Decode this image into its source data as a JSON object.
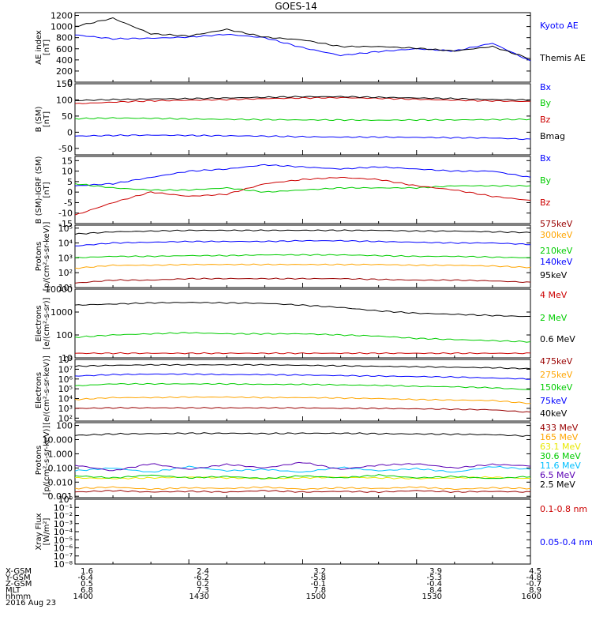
{
  "title": "GOES-14",
  "colors": {
    "black": "#000000",
    "blue": "#0000ff",
    "red": "#cc0000",
    "green": "#00cc00",
    "orange": "#ffa500",
    "darkred": "#990000",
    "yellow": "#e8e800",
    "cyan": "#00bfff",
    "purple": "#5a00b4"
  },
  "chart_data": [
    {
      "type": "line",
      "ylabel": "AE index\n[nT]",
      "yticks": [
        "0",
        "200",
        "400",
        "600",
        "800",
        "1000",
        "1200"
      ],
      "ylim": [
        0,
        1250
      ],
      "log": false,
      "x": [
        "1400",
        "1410",
        "1420",
        "1430",
        "1440",
        "1450",
        "1500",
        "1510",
        "1520",
        "1530",
        "1540",
        "1550",
        "1600"
      ],
      "series": [
        {
          "name": "Kyoto AE",
          "color": "#0000ff",
          "values": [
            850,
            780,
            790,
            810,
            860,
            800,
            620,
            480,
            550,
            600,
            560,
            700,
            380
          ]
        },
        {
          "name": "Themis AE",
          "color": "#000000",
          "values": [
            1000,
            1150,
            870,
            830,
            950,
            810,
            760,
            640,
            640,
            610,
            560,
            640,
            420
          ]
        }
      ]
    },
    {
      "type": "line",
      "ylabel": "B (SM)\n[nT]",
      "yticks": [
        "-50",
        "0",
        "50",
        "100",
        "150"
      ],
      "ylim": [
        -70,
        150
      ],
      "log": false,
      "x": [
        "1400",
        "1410",
        "1420",
        "1430",
        "1440",
        "1450",
        "1500",
        "1510",
        "1520",
        "1530",
        "1540",
        "1550",
        "1600"
      ],
      "series": [
        {
          "name": "Bx",
          "color": "#0000ff",
          "values": [
            -12,
            -10,
            -9,
            -10,
            -11,
            -12,
            -14,
            -15,
            -15,
            -16,
            -17,
            -18,
            -22
          ]
        },
        {
          "name": "By",
          "color": "#00cc00",
          "values": [
            42,
            44,
            43,
            41,
            40,
            39,
            38,
            38,
            37,
            38,
            38,
            39,
            40
          ]
        },
        {
          "name": "Bz",
          "color": "#cc0000",
          "values": [
            88,
            93,
            97,
            99,
            101,
            104,
            106,
            107,
            105,
            102,
            99,
            97,
            95
          ]
        },
        {
          "name": "Bmag",
          "color": "#000000",
          "values": [
            98,
            101,
            103,
            104,
            106,
            108,
            110,
            110,
            108,
            106,
            104,
            101,
            100
          ]
        }
      ]
    },
    {
      "type": "line",
      "ylabel": "B (SM)-IGRF (SM)\n[nT]",
      "yticks": [
        "-15",
        "-10",
        "-5",
        "0",
        "5",
        "10",
        "15"
      ],
      "ylim": [
        -15,
        17
      ],
      "log": false,
      "x": [
        "1400",
        "1410",
        "1420",
        "1430",
        "1440",
        "1450",
        "1500",
        "1510",
        "1520",
        "1530",
        "1540",
        "1550",
        "1600"
      ],
      "series": [
        {
          "name": "Bx",
          "color": "#0000ff",
          "values": [
            3,
            4,
            7,
            10,
            11,
            13,
            12,
            11,
            12,
            11,
            10,
            10,
            7
          ]
        },
        {
          "name": "By",
          "color": "#00cc00",
          "values": [
            4,
            2,
            1,
            1,
            2,
            0,
            1,
            2,
            2,
            2,
            3,
            3,
            3
          ]
        },
        {
          "name": "Bz",
          "color": "#cc0000",
          "values": [
            -11,
            -5,
            0,
            -2,
            -1,
            4,
            6,
            7,
            6,
            3,
            1,
            -2,
            -4
          ]
        }
      ]
    },
    {
      "type": "line",
      "ylabel": "Protons\n[p/(cm²-s-sr-keV)]",
      "yticks": [
        "10¹",
        "10²",
        "10³",
        "10⁴",
        "10⁵"
      ],
      "ylim": [
        1,
        5.2
      ],
      "log": true,
      "x": [
        "1400",
        "1410",
        "1420",
        "1430",
        "1440",
        "1450",
        "1500",
        "1510",
        "1520",
        "1530",
        "1540",
        "1550",
        "1600"
      ],
      "series": [
        {
          "name": "575keV",
          "color": "#990000",
          "values": [
            1.3,
            1.5,
            1.5,
            1.6,
            1.6,
            1.6,
            1.6,
            1.6,
            1.55,
            1.5,
            1.5,
            1.45,
            1.35
          ]
        },
        {
          "name": "300keV",
          "color": "#ffa500",
          "values": [
            2.3,
            2.5,
            2.5,
            2.55,
            2.55,
            2.55,
            2.55,
            2.55,
            2.55,
            2.5,
            2.5,
            2.45,
            2.35
          ]
        },
        {
          "name": "210keV",
          "color": "#00cc00",
          "values": [
            3.0,
            3.1,
            3.1,
            3.15,
            3.15,
            3.2,
            3.2,
            3.2,
            3.15,
            3.1,
            3.1,
            3.05,
            3.0
          ]
        },
        {
          "name": "140keV",
          "color": "#0000ff",
          "values": [
            3.8,
            4.0,
            4.05,
            4.1,
            4.1,
            4.1,
            4.15,
            4.15,
            4.1,
            4.05,
            4.0,
            4.0,
            3.9
          ]
        },
        {
          "name": "95keV",
          "color": "#000000",
          "values": [
            4.6,
            4.75,
            4.8,
            4.85,
            4.85,
            4.85,
            4.85,
            4.85,
            4.85,
            4.8,
            4.8,
            4.75,
            4.7
          ]
        }
      ]
    },
    {
      "type": "line",
      "ylabel": "Electrons\n[e/(cm²-s-sr)]",
      "yticks": [
        "10",
        "100",
        "1000",
        "10000"
      ],
      "ylim": [
        1,
        4
      ],
      "log": true,
      "x": [
        "1400",
        "1410",
        "1420",
        "1430",
        "1440",
        "1450",
        "1500",
        "1510",
        "1520",
        "1530",
        "1540",
        "1550",
        "1600"
      ],
      "series": [
        {
          "name": "4 MeV",
          "color": "#cc0000",
          "values": [
            1.2,
            1.2,
            1.2,
            1.2,
            1.2,
            1.2,
            1.2,
            1.2,
            1.2,
            1.2,
            1.2,
            1.2,
            1.2
          ]
        },
        {
          "name": "2 MeV",
          "color": "#00cc00",
          "values": [
            1.9,
            2.0,
            2.05,
            2.1,
            2.05,
            2.05,
            2.05,
            2.0,
            1.95,
            1.85,
            1.8,
            1.75,
            1.7
          ]
        },
        {
          "name": "0.6 MeV",
          "color": "#000000",
          "values": [
            3.3,
            3.35,
            3.4,
            3.42,
            3.4,
            3.38,
            3.3,
            3.2,
            3.05,
            2.95,
            2.9,
            2.85,
            2.8
          ]
        }
      ]
    },
    {
      "type": "line",
      "ylabel": "Electrons\n[e/(cm²-s-sr-keV)]",
      "yticks": [
        "10²",
        "10³",
        "10⁴",
        "10⁵",
        "10⁶",
        "10⁷",
        "10⁸"
      ],
      "ylim": [
        1.7,
        8
      ],
      "log": true,
      "x": [
        "1400",
        "1410",
        "1420",
        "1430",
        "1440",
        "1450",
        "1500",
        "1510",
        "1520",
        "1530",
        "1540",
        "1550",
        "1600"
      ],
      "series": [
        {
          "name": "475keV",
          "color": "#990000",
          "values": [
            3.0,
            3.05,
            3.05,
            3.05,
            3.05,
            3.05,
            3.05,
            3.0,
            3.0,
            2.95,
            2.9,
            2.85,
            2.6
          ]
        },
        {
          "name": "275keV",
          "color": "#ffa500",
          "values": [
            3.9,
            4.1,
            4.1,
            4.15,
            4.15,
            4.1,
            4.1,
            4.05,
            4.0,
            3.9,
            3.85,
            3.8,
            3.5
          ]
        },
        {
          "name": "150keV",
          "color": "#00cc00",
          "values": [
            5.3,
            5.5,
            5.5,
            5.5,
            5.5,
            5.45,
            5.45,
            5.4,
            5.35,
            5.25,
            5.2,
            5.1,
            4.9
          ]
        },
        {
          "name": "75keV",
          "color": "#0000ff",
          "values": [
            6.3,
            6.45,
            6.5,
            6.5,
            6.45,
            6.45,
            6.4,
            6.35,
            6.3,
            6.25,
            6.2,
            6.1,
            6.0
          ]
        },
        {
          "name": "40keV",
          "color": "#000000",
          "values": [
            7.3,
            7.4,
            7.45,
            7.45,
            7.45,
            7.45,
            7.4,
            7.35,
            7.3,
            7.25,
            7.2,
            7.15,
            7.05
          ]
        }
      ]
    },
    {
      "type": "line",
      "ylabel": "Protons\n[p/(cm²-s-sr-keV)]",
      "yticks": [
        "0.001",
        "0.010",
        "0.100",
        "1.000",
        "10.000",
        "100"
      ],
      "ylim": [
        -3.1,
        2.2
      ],
      "log": true,
      "x": [
        "1400",
        "1410",
        "1420",
        "1430",
        "1440",
        "1450",
        "1500",
        "1510",
        "1520",
        "1530",
        "1540",
        "1550",
        "1600"
      ],
      "series": [
        {
          "name": "433 MeV",
          "color": "#990000",
          "values": [
            -2.7,
            -2.6,
            -2.7,
            -2.65,
            -2.7,
            -2.6,
            -2.7,
            -2.65,
            -2.7,
            -2.6,
            -2.7,
            -2.65,
            -2.7
          ]
        },
        {
          "name": "165 MeV",
          "color": "#ffa500",
          "values": [
            -2.45,
            -2.35,
            -2.5,
            -2.4,
            -2.45,
            -2.35,
            -2.5,
            -2.4,
            -2.45,
            -2.35,
            -2.5,
            -2.4,
            -2.45
          ]
        },
        {
          "name": "63.1 MeV",
          "color": "#e8e800",
          "values": [
            -1.7,
            -1.75,
            -1.7,
            -1.65,
            -1.7,
            -1.75,
            -1.7,
            -1.65,
            -1.7,
            -1.75,
            -1.7,
            -1.65,
            -1.75
          ]
        },
        {
          "name": "30.6 MeV",
          "color": "#00cc00",
          "values": [
            -1.55,
            -1.7,
            -1.5,
            -1.7,
            -1.6,
            -1.75,
            -1.55,
            -1.7,
            -1.5,
            -1.7,
            -1.6,
            -1.75,
            -1.6
          ]
        },
        {
          "name": "11.6 MeV",
          "color": "#00bfff",
          "values": [
            -1.2,
            -1.0,
            -1.3,
            -0.9,
            -1.2,
            -1.1,
            -1.3,
            -0.95,
            -1.2,
            -1.05,
            -1.3,
            -0.9,
            -1.1
          ]
        },
        {
          "name": "6.5 MeV",
          "color": "#5a00b4",
          "values": [
            -0.8,
            -1.2,
            -0.7,
            -1.1,
            -0.75,
            -1.0,
            -0.6,
            -1.1,
            -0.8,
            -0.7,
            -1.0,
            -0.75,
            -0.85
          ]
        },
        {
          "name": "2.5 MeV",
          "color": "#000000",
          "values": [
            1.3,
            1.4,
            1.42,
            1.45,
            1.45,
            1.43,
            1.45,
            1.45,
            1.42,
            1.4,
            1.38,
            1.35,
            1.25
          ]
        }
      ]
    },
    {
      "type": "line",
      "ylabel": "Xray Flux\n[W/m²]",
      "yticks": [
        "10⁻⁸",
        "10⁻⁷",
        "10⁻⁶",
        "10⁻⁵",
        "10⁻⁴",
        "10⁻³",
        "10⁻²",
        "10⁻¹",
        "10⁰"
      ],
      "ylim": [
        -8,
        0
      ],
      "log": true,
      "x": [],
      "series": [
        {
          "name": "0.1-0.8 nm",
          "color": "#cc0000",
          "values": []
        },
        {
          "name": "0.05-0.4 nm",
          "color": "#0000ff",
          "values": []
        }
      ]
    }
  ],
  "footer": {
    "rows": [
      {
        "label": "X-GSM",
        "values": [
          "1.6",
          "2.4",
          "3.2",
          "3.9",
          "4.5"
        ]
      },
      {
        "label": "Y-GSM",
        "values": [
          "-6.4",
          "-6.2",
          "-5.8",
          "-5.3",
          "-4.8"
        ]
      },
      {
        "label": "Z-GSM",
        "values": [
          "0.5",
          "0.2",
          "-0.1",
          "-0.4",
          "-0.7"
        ]
      },
      {
        "label": "MLT",
        "values": [
          "6.8",
          "7.3",
          "7.8",
          "8.4",
          "8.9"
        ]
      },
      {
        "label": "hhmm",
        "values": [
          "1400",
          "1430",
          "1500",
          "1530",
          "1600"
        ]
      }
    ],
    "date": "2016 Aug 23"
  }
}
